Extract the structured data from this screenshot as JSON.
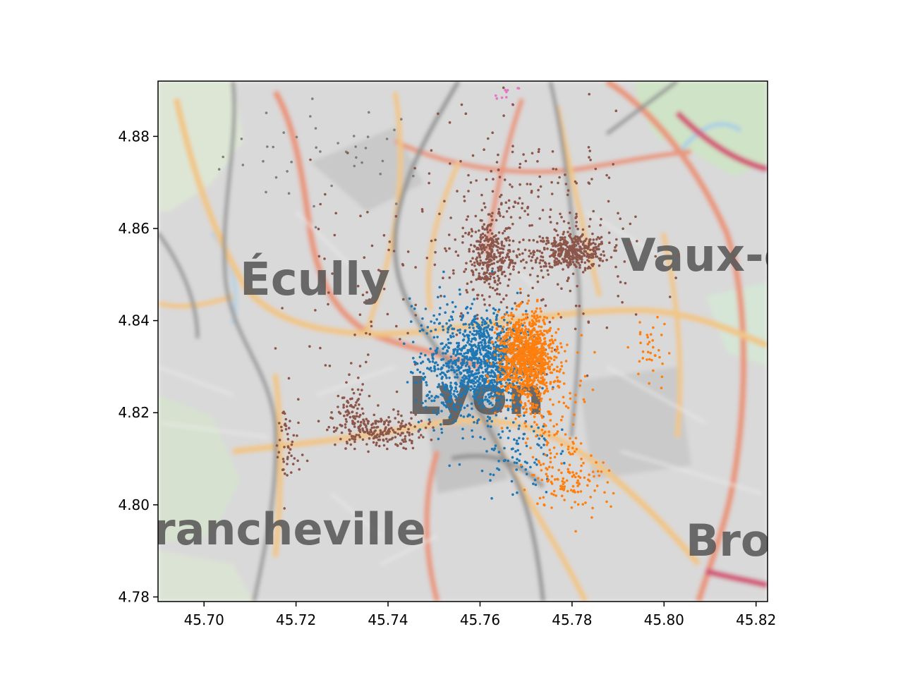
{
  "chart_data": {
    "type": "scatter",
    "title": "",
    "xlabel": "",
    "ylabel": "",
    "xlim": [
      45.69,
      45.8225
    ],
    "ylim": [
      4.779,
      4.892
    ],
    "xticks": [
      "45.70",
      "45.72",
      "45.74",
      "45.76",
      "45.78",
      "45.80",
      "45.82"
    ],
    "yticks": [
      "4.78",
      "4.80",
      "4.82",
      "4.84",
      "4.86",
      "4.88"
    ],
    "grid": false,
    "legend": "none",
    "basemap_labels": [
      "Écully",
      "Vaux-e",
      "Lyon",
      "rancheville",
      "Bro"
    ],
    "series_colors": {
      "blue": "#1f77b4",
      "orange": "#ff7f0e",
      "brown": "#8c564b",
      "gray": "#7f7f7f",
      "pink": "#e377c2"
    },
    "clusters": [
      {
        "color": "blue",
        "cx": 45.761,
        "cy": 4.831,
        "sx": 0.0045,
        "sy": 0.0055,
        "n": 900
      },
      {
        "color": "blue",
        "cx": 45.753,
        "cy": 4.83,
        "sx": 0.004,
        "sy": 0.007,
        "n": 250
      },
      {
        "color": "blue",
        "cx": 45.768,
        "cy": 4.812,
        "sx": 0.004,
        "sy": 0.005,
        "n": 90
      },
      {
        "color": "orange",
        "cx": 45.77,
        "cy": 4.832,
        "sx": 0.003,
        "sy": 0.0045,
        "n": 1000
      },
      {
        "color": "orange",
        "cx": 45.775,
        "cy": 4.822,
        "sx": 0.004,
        "sy": 0.008,
        "n": 150
      },
      {
        "color": "orange",
        "cx": 45.78,
        "cy": 4.806,
        "sx": 0.004,
        "sy": 0.004,
        "n": 110
      },
      {
        "color": "orange",
        "cx": 45.797,
        "cy": 4.833,
        "sx": 0.002,
        "sy": 0.004,
        "n": 35
      },
      {
        "color": "brown",
        "cx": 45.762,
        "cy": 4.854,
        "sx": 0.0025,
        "sy": 0.004,
        "n": 280
      },
      {
        "color": "brown",
        "cx": 45.78,
        "cy": 4.855,
        "sx": 0.004,
        "sy": 0.002,
        "n": 380
      },
      {
        "color": "brown",
        "cx": 45.738,
        "cy": 4.816,
        "sx": 0.005,
        "sy": 0.002,
        "n": 200
      },
      {
        "color": "brown",
        "cx": 45.732,
        "cy": 4.82,
        "sx": 0.0015,
        "sy": 0.003,
        "n": 70
      },
      {
        "color": "brown",
        "cx": 45.77,
        "cy": 4.858,
        "sx": 0.012,
        "sy": 0.012,
        "n": 320
      },
      {
        "color": "brown",
        "cx": 45.718,
        "cy": 4.812,
        "sx": 0.0015,
        "sy": 0.006,
        "n": 50
      },
      {
        "color": "brown",
        "cx": 45.735,
        "cy": 4.845,
        "sx": 0.008,
        "sy": 0.012,
        "n": 60
      },
      {
        "color": "gray",
        "cx": 45.728,
        "cy": 4.876,
        "sx": 0.012,
        "sy": 0.006,
        "n": 40
      },
      {
        "color": "pink",
        "cx": 45.766,
        "cy": 4.889,
        "sx": 0.0015,
        "sy": 0.001,
        "n": 10
      }
    ]
  }
}
